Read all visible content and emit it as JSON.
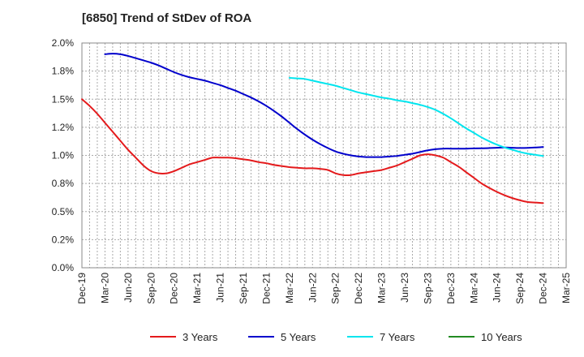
{
  "chart_data": {
    "type": "line",
    "title": "[6850]  Trend of StDev of ROA",
    "xlabel": "",
    "ylabel": "",
    "grid": true,
    "legend_position": "bottom",
    "x_ticks": [
      "Dec-19",
      "Mar-20",
      "Jun-20",
      "Sep-20",
      "Dec-20",
      "Mar-21",
      "Jun-21",
      "Sep-21",
      "Dec-21",
      "Mar-22",
      "Jun-22",
      "Sep-22",
      "Dec-22",
      "Mar-23",
      "Jun-23",
      "Sep-23",
      "Dec-23",
      "Mar-24",
      "Jun-24",
      "Sep-24",
      "Dec-24",
      "Mar-25"
    ],
    "y_ticks": [
      "0.0%",
      "0.2%",
      "0.5%",
      "0.8%",
      "1.0%",
      "1.2%",
      "1.5%",
      "1.8%",
      "2.0%"
    ],
    "ylim": [
      0,
      2.0
    ],
    "series": [
      {
        "name": "3 Years",
        "color": "#e41a1c",
        "x": [
          "Dec-19",
          "Jan-20",
          "Feb-20",
          "Mar-20",
          "Apr-20",
          "May-20",
          "Jun-20",
          "Jul-20",
          "Aug-20",
          "Sep-20",
          "Oct-20",
          "Nov-20",
          "Dec-20",
          "Jan-21",
          "Feb-21",
          "Mar-21",
          "Apr-21",
          "May-21",
          "Jun-21",
          "Jul-21",
          "Aug-21",
          "Sep-21",
          "Oct-21",
          "Nov-21",
          "Dec-21",
          "Jan-22",
          "Feb-22",
          "Mar-22",
          "Apr-22",
          "May-22",
          "Jun-22",
          "Jul-22",
          "Aug-22",
          "Sep-22",
          "Oct-22",
          "Nov-22",
          "Dec-22",
          "Jan-23",
          "Feb-23",
          "Mar-23",
          "Apr-23",
          "May-23",
          "Jun-23",
          "Jul-23",
          "Aug-23",
          "Sep-23",
          "Oct-23",
          "Nov-23",
          "Dec-23",
          "Jan-24",
          "Feb-24",
          "Mar-24",
          "Apr-24",
          "May-24",
          "Jun-24",
          "Jul-24",
          "Aug-24",
          "Sep-24",
          "Oct-24",
          "Nov-24",
          "Dec-24"
        ],
        "values": [
          1.5,
          1.44,
          1.37,
          1.29,
          1.21,
          1.13,
          1.05,
          0.98,
          0.91,
          0.86,
          0.84,
          0.84,
          0.86,
          0.89,
          0.92,
          0.94,
          0.96,
          0.98,
          0.98,
          0.98,
          0.975,
          0.965,
          0.955,
          0.94,
          0.93,
          0.915,
          0.905,
          0.895,
          0.89,
          0.885,
          0.885,
          0.88,
          0.87,
          0.84,
          0.825,
          0.825,
          0.84,
          0.85,
          0.86,
          0.87,
          0.89,
          0.91,
          0.94,
          0.97,
          1.0,
          1.01,
          1.0,
          0.98,
          0.94,
          0.9,
          0.85,
          0.8,
          0.75,
          0.71,
          0.675,
          0.645,
          0.62,
          0.6,
          0.585,
          0.58,
          0.575
        ]
      },
      {
        "name": "5 Years",
        "color": "#0000cc",
        "x": [
          "Mar-20",
          "Apr-20",
          "May-20",
          "Jun-20",
          "Jul-20",
          "Aug-20",
          "Sep-20",
          "Oct-20",
          "Nov-20",
          "Dec-20",
          "Jan-21",
          "Feb-21",
          "Mar-21",
          "Apr-21",
          "May-21",
          "Jun-21",
          "Jul-21",
          "Aug-21",
          "Sep-21",
          "Oct-21",
          "Nov-21",
          "Dec-21",
          "Jan-22",
          "Feb-22",
          "Mar-22",
          "Apr-22",
          "May-22",
          "Jun-22",
          "Jul-22",
          "Aug-22",
          "Sep-22",
          "Oct-22",
          "Nov-22",
          "Dec-22",
          "Jan-23",
          "Feb-23",
          "Mar-23",
          "Apr-23",
          "May-23",
          "Jun-23",
          "Jul-23",
          "Aug-23",
          "Sep-23",
          "Oct-23",
          "Nov-23",
          "Dec-23",
          "Jan-24",
          "Feb-24",
          "Mar-24",
          "Apr-24",
          "May-24",
          "Jun-24",
          "Jul-24",
          "Aug-24",
          "Sep-24",
          "Oct-24",
          "Nov-24",
          "Dec-24"
        ],
        "values": [
          1.9,
          1.905,
          1.9,
          1.885,
          1.865,
          1.845,
          1.825,
          1.8,
          1.77,
          1.74,
          1.715,
          1.695,
          1.68,
          1.665,
          1.645,
          1.625,
          1.6,
          1.575,
          1.545,
          1.515,
          1.48,
          1.44,
          1.395,
          1.345,
          1.29,
          1.235,
          1.185,
          1.14,
          1.1,
          1.065,
          1.035,
          1.015,
          1.0,
          0.99,
          0.985,
          0.985,
          0.985,
          0.99,
          0.995,
          1.005,
          1.015,
          1.03,
          1.045,
          1.055,
          1.06,
          1.06,
          1.06,
          1.06,
          1.062,
          1.063,
          1.065,
          1.068,
          1.07,
          1.068,
          1.066,
          1.067,
          1.07,
          1.075
        ]
      },
      {
        "name": "7 Years",
        "color": "#00e5ee",
        "x": [
          "Mar-22",
          "Apr-22",
          "May-22",
          "Jun-22",
          "Jul-22",
          "Aug-22",
          "Sep-22",
          "Oct-22",
          "Nov-22",
          "Dec-22",
          "Jan-23",
          "Feb-23",
          "Mar-23",
          "Apr-23",
          "May-23",
          "Jun-23",
          "Jul-23",
          "Aug-23",
          "Sep-23",
          "Oct-23",
          "Nov-23",
          "Dec-23",
          "Jan-24",
          "Feb-24",
          "Mar-24",
          "Apr-24",
          "May-24",
          "Jun-24",
          "Jul-24",
          "Aug-24",
          "Sep-24",
          "Oct-24",
          "Nov-24",
          "Dec-24"
        ],
        "values": [
          1.69,
          1.685,
          1.68,
          1.665,
          1.65,
          1.635,
          1.62,
          1.6,
          1.58,
          1.56,
          1.545,
          1.53,
          1.515,
          1.505,
          1.49,
          1.48,
          1.465,
          1.45,
          1.43,
          1.405,
          1.37,
          1.33,
          1.285,
          1.24,
          1.2,
          1.16,
          1.125,
          1.095,
          1.07,
          1.05,
          1.03,
          1.015,
          1.005,
          0.995
        ]
      },
      {
        "name": "10 Years",
        "color": "#228b22",
        "x": [],
        "values": []
      }
    ]
  }
}
